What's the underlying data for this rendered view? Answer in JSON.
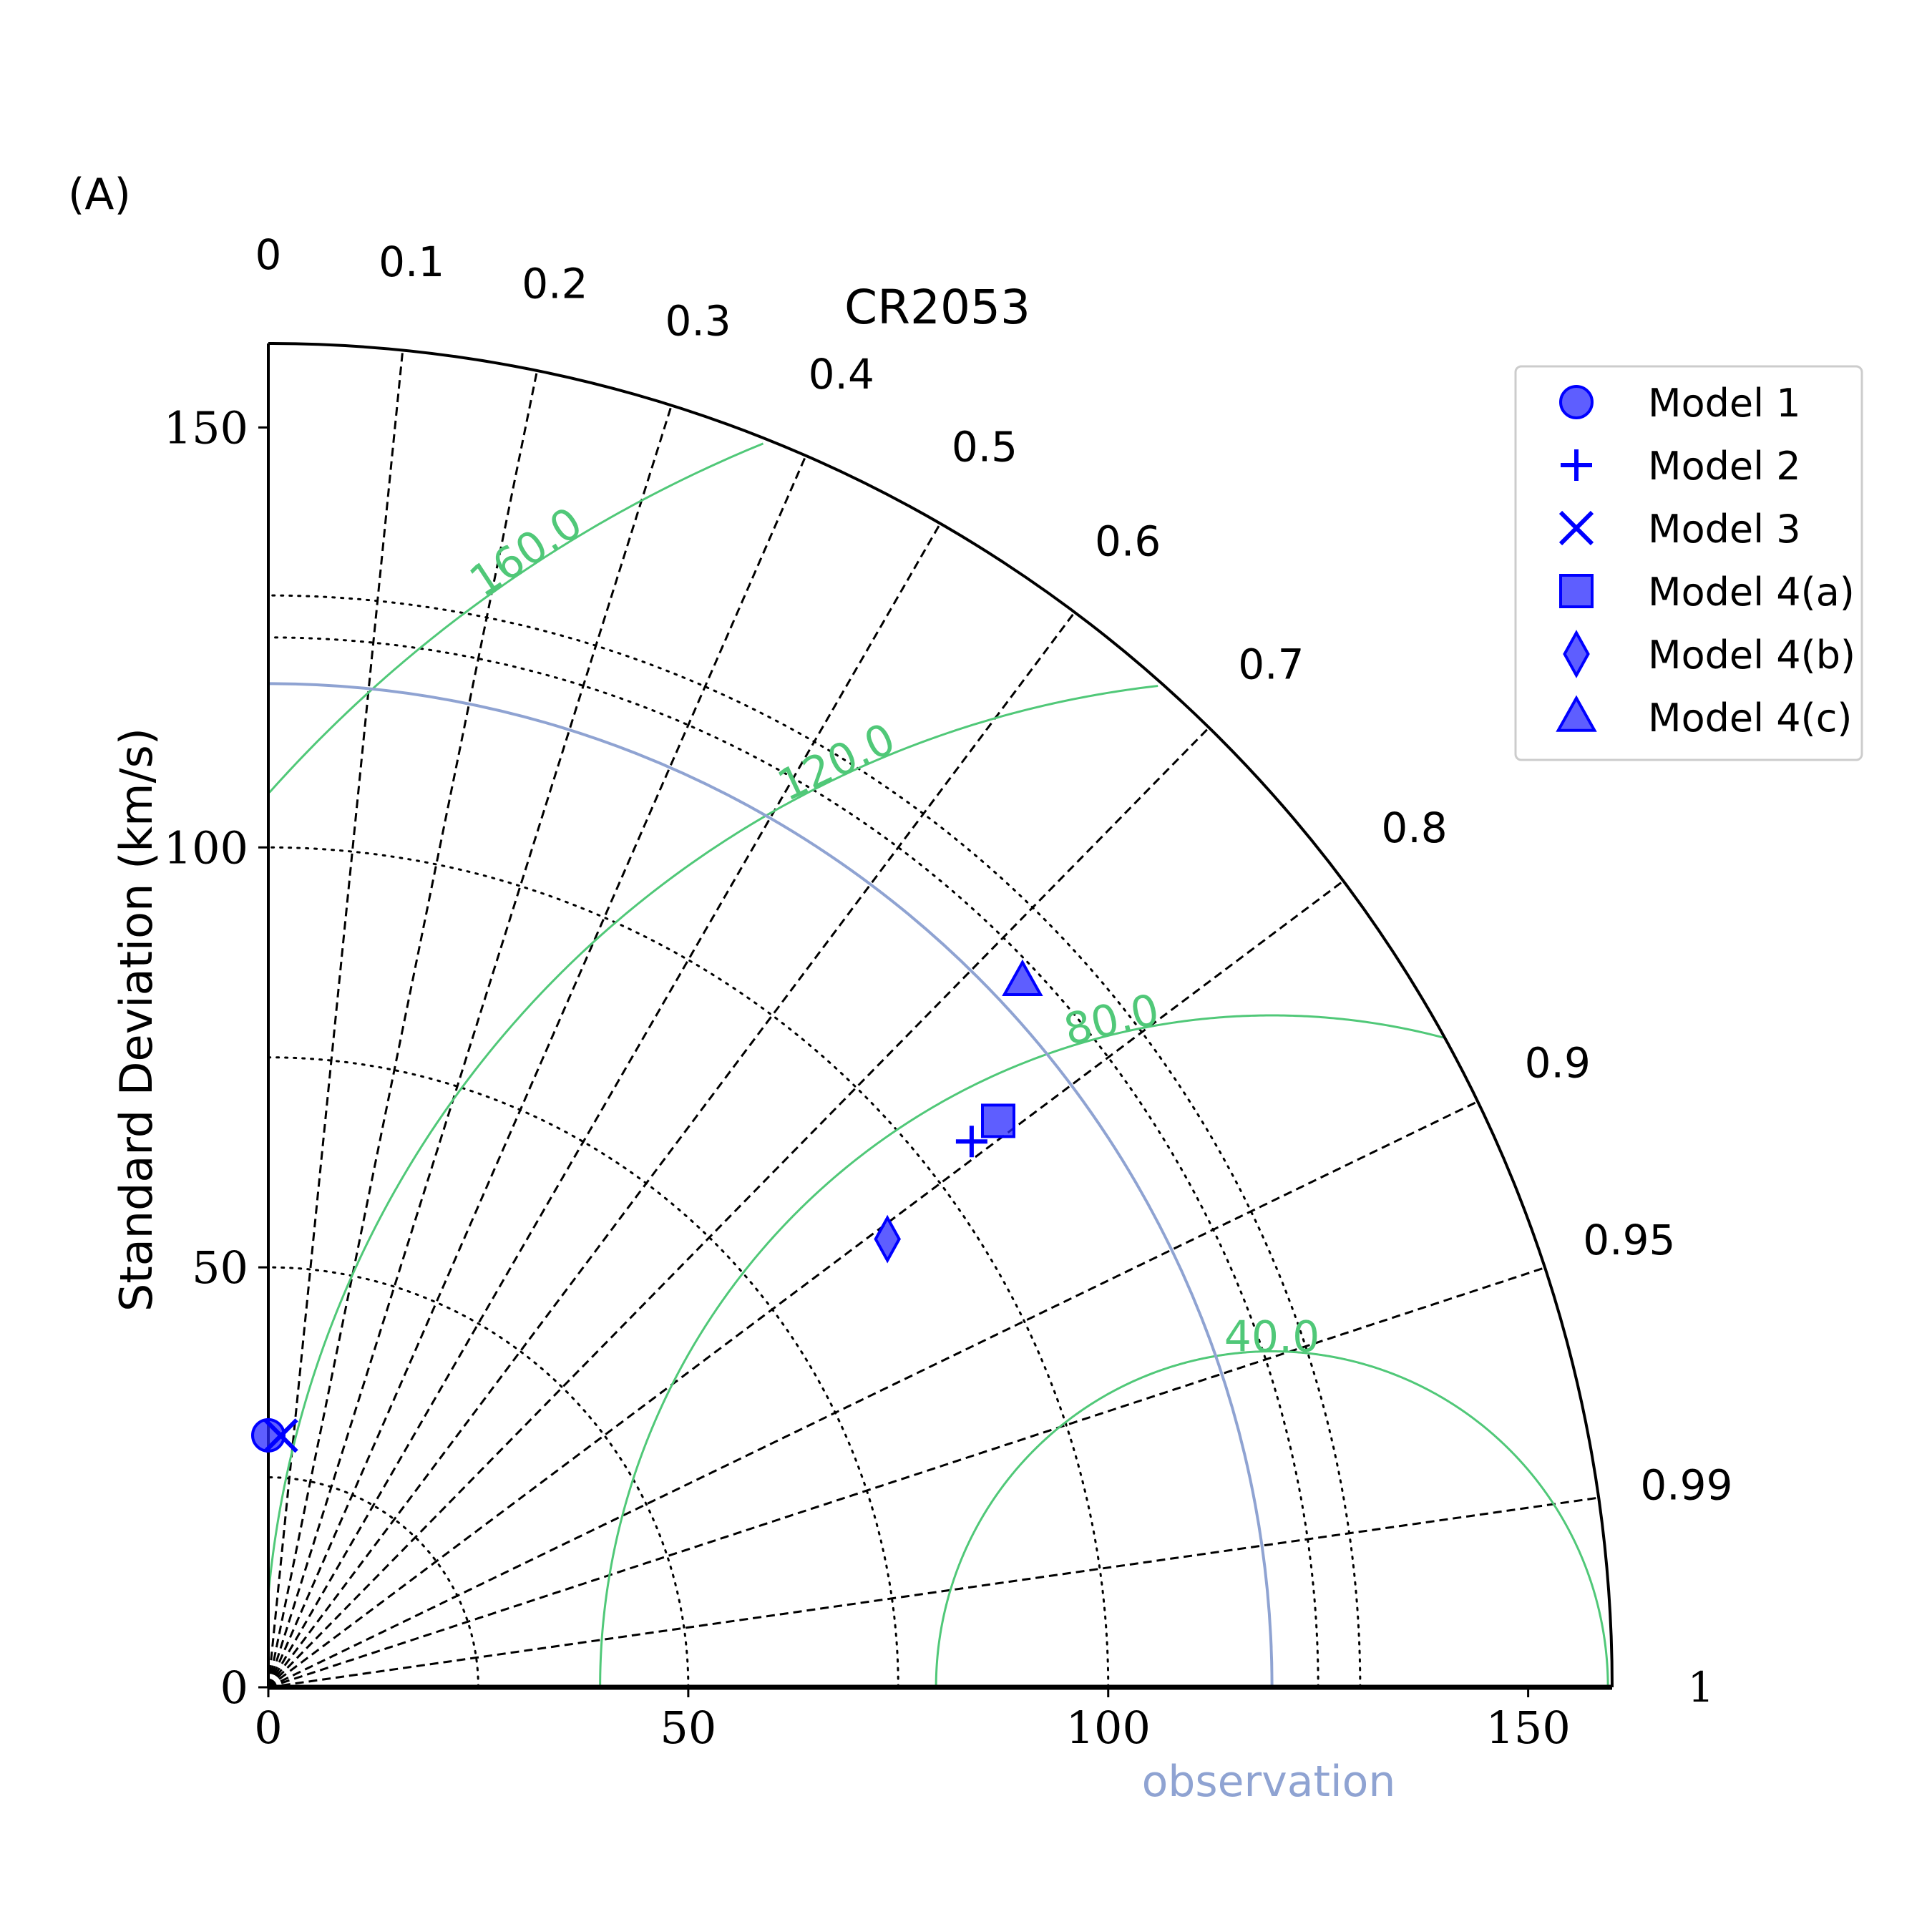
{
  "chart_data": {
    "type": "taylor_diagram",
    "panel_label": "(A)",
    "title": "CR2053",
    "ylabel": "Standard Deviation (km/s)",
    "std_range": [
      0,
      160
    ],
    "std_ticks": [
      0,
      50,
      100,
      150
    ],
    "std_tick_labels": [
      "0",
      "50",
      "100",
      "150"
    ],
    "std_grid": [
      25,
      50,
      75,
      100,
      125,
      130
    ],
    "correlation_ticks": [
      0,
      0.1,
      0.2,
      0.3,
      0.4,
      0.5,
      0.6,
      0.7,
      0.8,
      0.9,
      0.95,
      0.99,
      1
    ],
    "correlation_tick_labels": [
      "0",
      "0.1",
      "0.2",
      "0.3",
      "0.4",
      "0.5",
      "0.6",
      "0.7",
      "0.8",
      "0.9",
      "0.95",
      "0.99",
      "1"
    ],
    "observation": {
      "label": "observation",
      "std": 119.5,
      "color": "#8fa3d2"
    },
    "rms_contours": [
      {
        "value": 40,
        "label": "40.0"
      },
      {
        "value": 80,
        "label": "80.0"
      },
      {
        "value": 120,
        "label": "120.0"
      },
      {
        "value": 160,
        "label": "160.0"
      }
    ],
    "rms_color": "#50c878",
    "series": [
      {
        "name": "Model 1",
        "marker": "circle",
        "std": 30,
        "corr": 0.0
      },
      {
        "name": "Model 2",
        "marker": "plus",
        "std": 106,
        "corr": 0.79
      },
      {
        "name": "Model 3",
        "marker": "x",
        "std": 30,
        "corr": 0.05
      },
      {
        "name": "Model 4(a)",
        "marker": "square",
        "std": 110,
        "corr": 0.79
      },
      {
        "name": "Model 4(b)",
        "marker": "diamond",
        "std": 91,
        "corr": 0.81
      },
      {
        "name": "Model 4(c)",
        "marker": "triangle",
        "std": 123,
        "corr": 0.73
      }
    ],
    "marker_color": "#0000ff",
    "legend_position": "top-right"
  }
}
